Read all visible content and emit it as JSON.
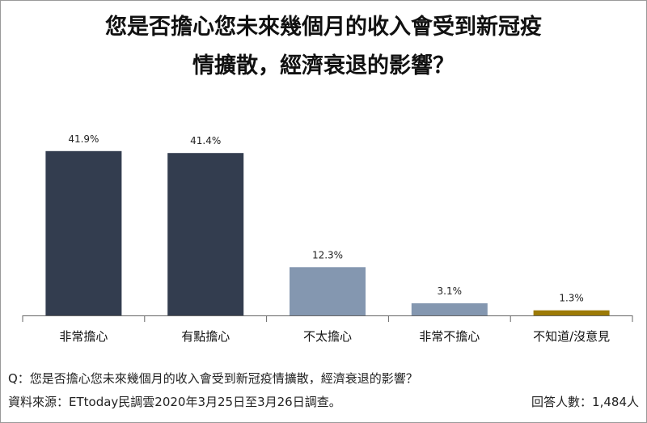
{
  "title_lines": [
    "您是否擔心您未來幾個月的收入會受到新冠疫",
    "情擴散，經濟衰退的影響？"
  ],
  "chart_data": {
    "type": "bar",
    "categories": [
      "非常擔心",
      "有點擔心",
      "不太擔心",
      "非常不擔心",
      "不知道/沒意見"
    ],
    "values": [
      41.9,
      41.4,
      12.3,
      3.1,
      1.3
    ],
    "value_labels": [
      "41.9%",
      "41.4%",
      "12.3%",
      "3.1%",
      "1.3%"
    ],
    "colors": [
      "#333d4f",
      "#333d4f",
      "#8497b0",
      "#8497b0",
      "#9c7a06"
    ],
    "unit": "%",
    "grid": false,
    "legend": "none"
  },
  "footer": {
    "question": "Q：您是否擔心您未來幾個月的收入會受到新冠疫情擴散，經濟衰退的影響？",
    "source": "資料來源：ETtoday民調雲2020年3月25日至3月26日調查。",
    "respondents": "回答人數：1,484人"
  }
}
